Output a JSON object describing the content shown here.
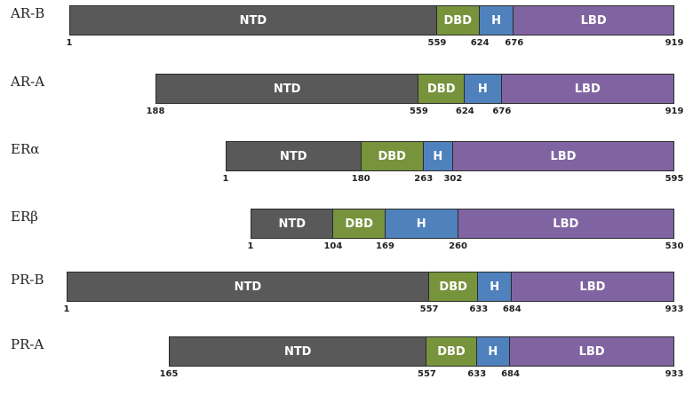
{
  "colors": {
    "NTD": "#595959",
    "DBD": "#77933C",
    "H": "#4F81BD",
    "LBD": "#8064A2"
  },
  "receptors": [
    {
      "name": "AR-B",
      "domains": [
        {
          "label": "NTD",
          "start": 1,
          "end": 559
        },
        {
          "label": "DBD",
          "start": 559,
          "end": 624
        },
        {
          "label": "H",
          "start": 624,
          "end": 676
        },
        {
          "label": "LBD",
          "start": 676,
          "end": 919
        }
      ],
      "ticks": [
        1,
        559,
        624,
        676,
        919
      ]
    },
    {
      "name": "AR-A",
      "domains": [
        {
          "label": "NTD",
          "start": 188,
          "end": 559
        },
        {
          "label": "DBD",
          "start": 559,
          "end": 624
        },
        {
          "label": "H",
          "start": 624,
          "end": 676
        },
        {
          "label": "LBD",
          "start": 676,
          "end": 919
        }
      ],
      "ticks": [
        188,
        559,
        624,
        676,
        919
      ]
    },
    {
      "name": "ERα",
      "domains": [
        {
          "label": "NTD",
          "start": 1,
          "end": 180
        },
        {
          "label": "DBD",
          "start": 180,
          "end": 263
        },
        {
          "label": "H",
          "start": 263,
          "end": 302
        },
        {
          "label": "LBD",
          "start": 302,
          "end": 595
        }
      ],
      "ticks": [
        1,
        180,
        263,
        302,
        595
      ]
    },
    {
      "name": "ERβ",
      "domains": [
        {
          "label": "NTD",
          "start": 1,
          "end": 104
        },
        {
          "label": "DBD",
          "start": 104,
          "end": 169
        },
        {
          "label": "H",
          "start": 169,
          "end": 260
        },
        {
          "label": "LBD",
          "start": 260,
          "end": 530
        }
      ],
      "ticks": [
        1,
        104,
        169,
        260,
        530
      ]
    },
    {
      "name": "PR-B",
      "domains": [
        {
          "label": "NTD",
          "start": 1,
          "end": 557
        },
        {
          "label": "DBD",
          "start": 557,
          "end": 633
        },
        {
          "label": "H",
          "start": 633,
          "end": 684
        },
        {
          "label": "LBD",
          "start": 684,
          "end": 933
        }
      ],
      "ticks": [
        1,
        557,
        633,
        684,
        933
      ]
    },
    {
      "name": "PR-A",
      "domains": [
        {
          "label": "NTD",
          "start": 165,
          "end": 557
        },
        {
          "label": "DBD",
          "start": 557,
          "end": 633
        },
        {
          "label": "H",
          "start": 633,
          "end": 684
        },
        {
          "label": "LBD",
          "start": 684,
          "end": 933
        }
      ],
      "ticks": [
        165,
        557,
        633,
        684,
        933
      ]
    }
  ]
}
